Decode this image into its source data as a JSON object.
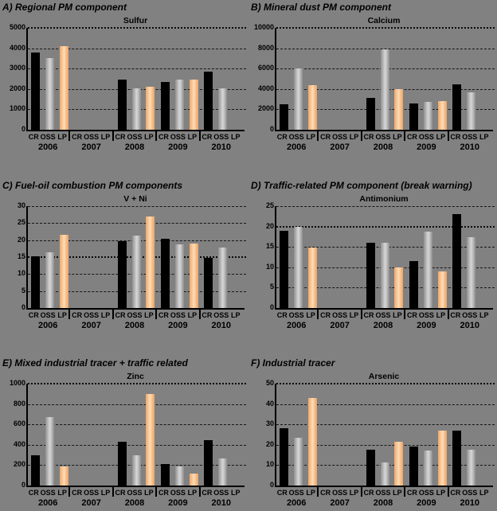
{
  "figure": {
    "background_color": "#818181",
    "series_labels": [
      "CR",
      "OSS",
      "LP"
    ],
    "series_colors": {
      "CR": "#000000",
      "OSS": "#c6c6c6",
      "LP": "#fbd0a4"
    },
    "years": [
      "2006",
      "2007",
      "2008",
      "2009",
      "2010"
    ]
  },
  "chart_data": [
    {
      "type": "bar",
      "heading": "A) Regional PM component",
      "title": "Sulfur",
      "ylim": [
        0,
        5000
      ],
      "yticks": [
        0,
        1000,
        2000,
        3000,
        4000,
        5000
      ],
      "dotted_line": 5000,
      "grid": true,
      "categories": [
        "2006",
        "2007",
        "2008",
        "2009",
        "2010"
      ],
      "series": [
        {
          "name": "CR",
          "values": [
            3800,
            null,
            2450,
            2350,
            2850
          ]
        },
        {
          "name": "OSS",
          "values": [
            3500,
            null,
            2050,
            2450,
            2050
          ]
        },
        {
          "name": "LP",
          "values": [
            4100,
            null,
            2100,
            2450,
            null
          ]
        }
      ]
    },
    {
      "type": "bar",
      "heading": "B) Mineral dust PM component",
      "title": "Calcium",
      "ylim": [
        0,
        10000
      ],
      "yticks": [
        0,
        2000,
        4000,
        6000,
        8000,
        10000
      ],
      "dotted_line": 10000,
      "grid": true,
      "categories": [
        "2006",
        "2007",
        "2008",
        "2009",
        "2010"
      ],
      "series": [
        {
          "name": "CR",
          "values": [
            2500,
            null,
            3150,
            2550,
            4450
          ]
        },
        {
          "name": "OSS",
          "values": [
            6000,
            null,
            7900,
            2750,
            3650
          ]
        },
        {
          "name": "LP",
          "values": [
            4400,
            null,
            4000,
            2850,
            null
          ]
        }
      ]
    },
    {
      "type": "bar",
      "heading": "C) Fuel-oil combustion PM components",
      "title": "V + Ni",
      "ylim": [
        0,
        30
      ],
      "yticks": [
        0,
        5,
        10,
        15,
        20,
        25,
        30
      ],
      "dotted_line": 15,
      "grid": true,
      "categories": [
        "2006",
        "2007",
        "2008",
        "2009",
        "2010"
      ],
      "series": [
        {
          "name": "CR",
          "values": [
            15.2,
            null,
            19.8,
            20.3,
            14.8
          ]
        },
        {
          "name": "OSS",
          "values": [
            16.4,
            null,
            21.3,
            18.7,
            17.8
          ]
        },
        {
          "name": "LP",
          "values": [
            21.6,
            null,
            27.0,
            19.1,
            null
          ]
        }
      ]
    },
    {
      "type": "bar",
      "heading": "D) Traffic-related PM component (break warning)",
      "title": "Antimonium",
      "ylim": [
        0,
        25
      ],
      "yticks": [
        0,
        5,
        10,
        15,
        20,
        25
      ],
      "dotted_line": 20,
      "grid": true,
      "categories": [
        "2006",
        "2007",
        "2008",
        "2009",
        "2010"
      ],
      "series": [
        {
          "name": "CR",
          "values": [
            19.0,
            null,
            16.0,
            11.5,
            23.0
          ]
        },
        {
          "name": "OSS",
          "values": [
            20.0,
            null,
            16.0,
            18.8,
            17.3
          ]
        },
        {
          "name": "LP",
          "values": [
            14.8,
            null,
            10.0,
            8.9,
            null
          ]
        }
      ]
    },
    {
      "type": "bar",
      "heading": "E) Mixed industrial tracer + traffic related",
      "title": "Zinc",
      "ylim": [
        0,
        1000
      ],
      "yticks": [
        0,
        200,
        400,
        600,
        800,
        1000
      ],
      "dotted_line": 1000,
      "grid": true,
      "categories": [
        "2006",
        "2007",
        "2008",
        "2009",
        "2010"
      ],
      "series": [
        {
          "name": "CR",
          "values": [
            300,
            null,
            430,
            210,
            445
          ]
        },
        {
          "name": "OSS",
          "values": [
            670,
            null,
            300,
            185,
            265
          ]
        },
        {
          "name": "LP",
          "values": [
            185,
            null,
            895,
            120,
            null
          ]
        }
      ]
    },
    {
      "type": "bar",
      "heading": "F) Industrial tracer",
      "title": "Arsenic",
      "ylim": [
        0,
        50
      ],
      "yticks": [
        0,
        10,
        20,
        30,
        40,
        50
      ],
      "dotted_line": 50,
      "grid": true,
      "categories": [
        "2006",
        "2007",
        "2008",
        "2009",
        "2010"
      ],
      "series": [
        {
          "name": "CR",
          "values": [
            28.0,
            null,
            17.5,
            19.0,
            27.0
          ]
        },
        {
          "name": "OSS",
          "values": [
            23.5,
            null,
            11.5,
            17.0,
            17.5
          ]
        },
        {
          "name": "LP",
          "values": [
            43.0,
            null,
            21.5,
            27.0,
            null
          ]
        }
      ]
    }
  ]
}
